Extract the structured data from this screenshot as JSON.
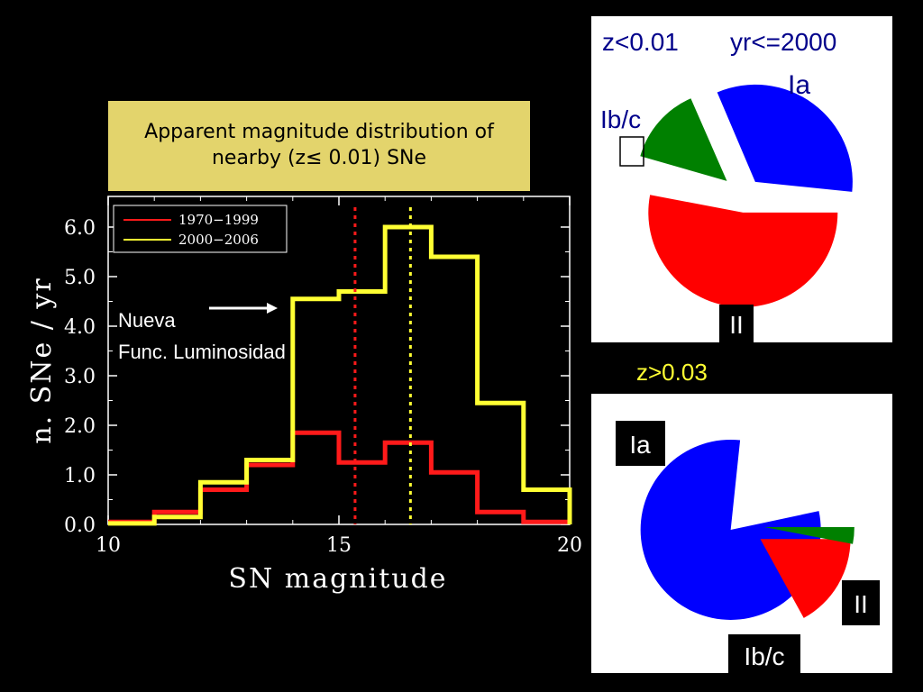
{
  "title_box": {
    "line1": "Apparent magnitude distribution of",
    "line2": "nearby (z≤ 0.01) SNe"
  },
  "annotation": {
    "line1": "Nueva",
    "line2": "Func. Luminosidad"
  },
  "chart_data": [
    {
      "type": "line",
      "title": "",
      "xlabel": "SN magnitude",
      "ylabel": "n. SNe / yr",
      "xlim": [
        10,
        20
      ],
      "ylim": [
        0,
        6.5
      ],
      "x_ticks": [
        "10",
        "15",
        "20"
      ],
      "y_ticks": [
        "0.0",
        "1.0",
        "2.0",
        "3.0",
        "4.0",
        "5.0",
        "6.0"
      ],
      "legend_position": "top-left",
      "grid": false,
      "bin_edges": [
        10,
        11,
        12,
        13,
        14,
        15,
        16,
        17,
        18,
        19,
        20
      ],
      "series": [
        {
          "name": "1970−1999",
          "color": "#ff1a1a",
          "values": [
            0.05,
            0.25,
            0.7,
            1.2,
            1.85,
            1.25,
            1.65,
            1.05,
            0.25,
            0.05
          ]
        },
        {
          "name": "2000−2006",
          "color": "#ffff33",
          "values": [
            0.02,
            0.15,
            0.85,
            1.3,
            4.55,
            4.7,
            6.0,
            5.4,
            2.45,
            0.7
          ]
        }
      ],
      "vlines": [
        {
          "x": 15.35,
          "color": "#ff1a1a"
        },
        {
          "x": 16.55,
          "color": "#ffff33"
        }
      ]
    },
    {
      "type": "pie",
      "labels_text": {
        "z": "z<0.01",
        "yr": "yr<=2000"
      },
      "slices": [
        {
          "label": "Ia",
          "value": 33,
          "color": "#0000ff"
        },
        {
          "label": "II",
          "value": 53,
          "color": "#ff0000"
        },
        {
          "label": "Ib/c",
          "value": 14,
          "color": "#008000"
        }
      ]
    },
    {
      "type": "pie",
      "labels_text": {
        "z": "z>0.03"
      },
      "slices": [
        {
          "label": "Ia",
          "value": 80,
          "color": "#0000ff"
        },
        {
          "label": "II",
          "value": 17,
          "color": "#ff0000"
        },
        {
          "label": "Ib/c",
          "value": 3,
          "color": "#008000"
        }
      ]
    }
  ]
}
